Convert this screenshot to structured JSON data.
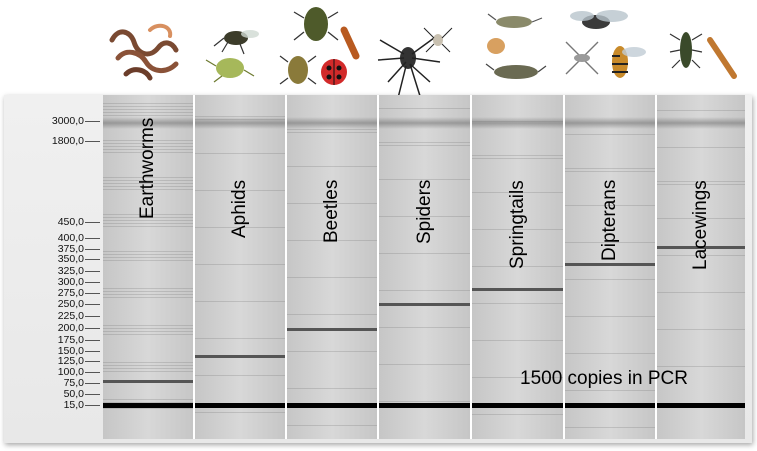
{
  "ladder": {
    "labels": [
      "3000,0",
      "1800,0",
      "450,0",
      "400,0",
      "375,0",
      "350,0",
      "325,0",
      "300,0",
      "275,0",
      "250,0",
      "225,0",
      "200,0",
      "175,0",
      "150,0",
      "125,0",
      "100,0",
      "75,0",
      "50,0",
      "15,0"
    ]
  },
  "lanes": [
    {
      "name": "Earthworms",
      "icon": "earthworm-icon",
      "band_size": 80
    },
    {
      "name": "Aphids",
      "icon": "aphid-icon",
      "band_size": 138
    },
    {
      "name": "Beetles",
      "icon": "beetle-icon",
      "band_size": 198
    },
    {
      "name": "Spiders",
      "icon": "spider-icon",
      "band_size": 249
    },
    {
      "name": "Springtails",
      "icon": "springtail-icon",
      "band_size": 285
    },
    {
      "name": "Dipterans",
      "icon": "dipteran-icon",
      "band_size": 340
    },
    {
      "name": "Lacewings",
      "icon": "lacewing-icon",
      "band_size": 380
    }
  ],
  "annotation": "1500 copies in PCR",
  "colors": {
    "gel": "#cfcfcf",
    "band": "#555555",
    "marker_band": "#000000",
    "separator": "#ffffff"
  }
}
